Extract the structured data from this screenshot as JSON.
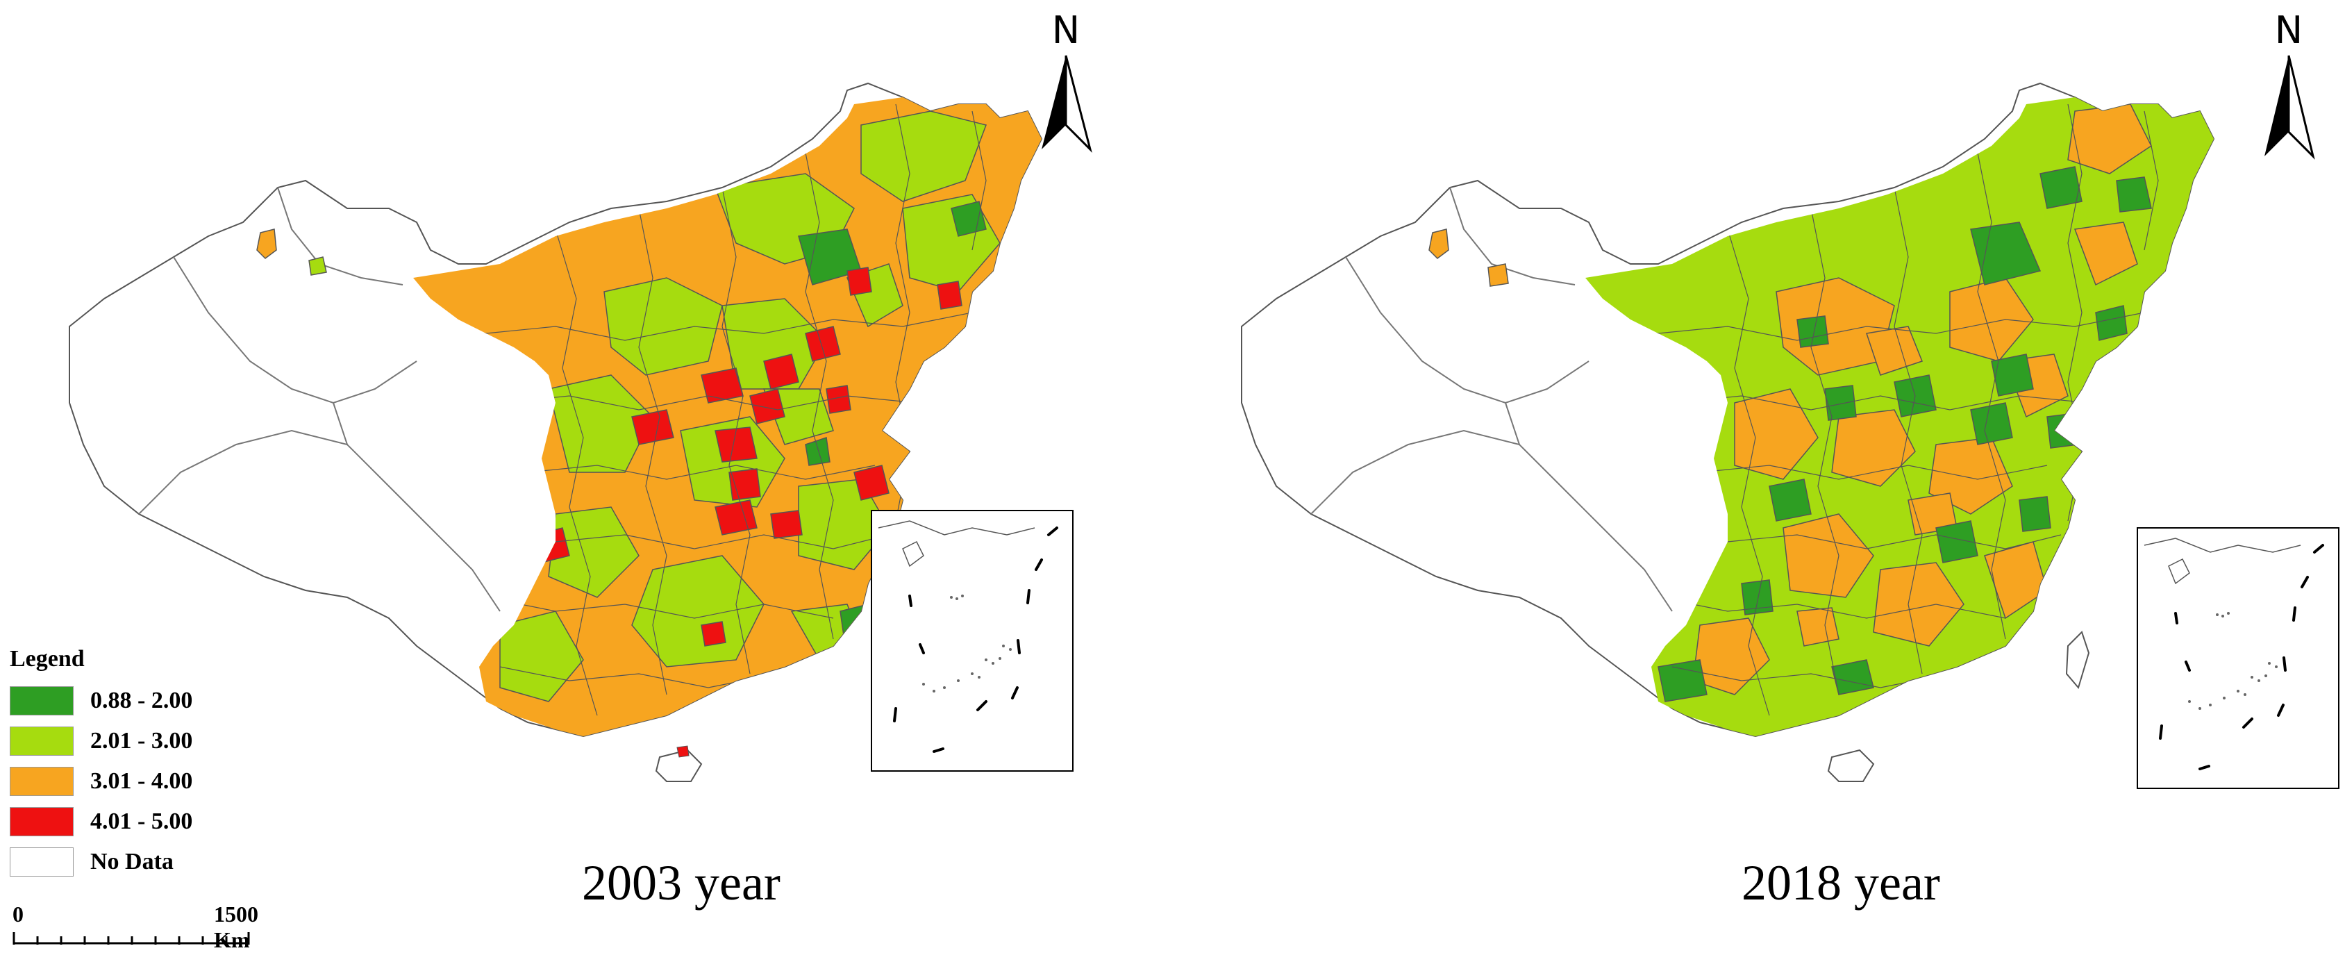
{
  "maps": [
    {
      "year_caption": "2003 year",
      "north_label": "N"
    },
    {
      "year_caption": "2018 year",
      "north_label": "N"
    }
  ],
  "legend": {
    "title": "Legend",
    "classes": [
      {
        "label": "0.88 - 2.00",
        "color": "#2e9e23"
      },
      {
        "label": "2.01 - 3.00",
        "color": "#a6dc0f"
      },
      {
        "label": "3.01 - 4.00",
        "color": "#f7a520"
      },
      {
        "label": "4.01 - 5.00",
        "color": "#ee1111"
      },
      {
        "label": "No Data",
        "color": "#ffffff"
      }
    ]
  },
  "scale_bar": {
    "start_label": "0",
    "end_label": "1500 Km"
  },
  "colors": {
    "dark_green": "#2e9e23",
    "light_green": "#a6dc0f",
    "orange": "#f7a520",
    "red": "#ee1111",
    "no_data": "#ffffff",
    "boundary": "#555555"
  }
}
